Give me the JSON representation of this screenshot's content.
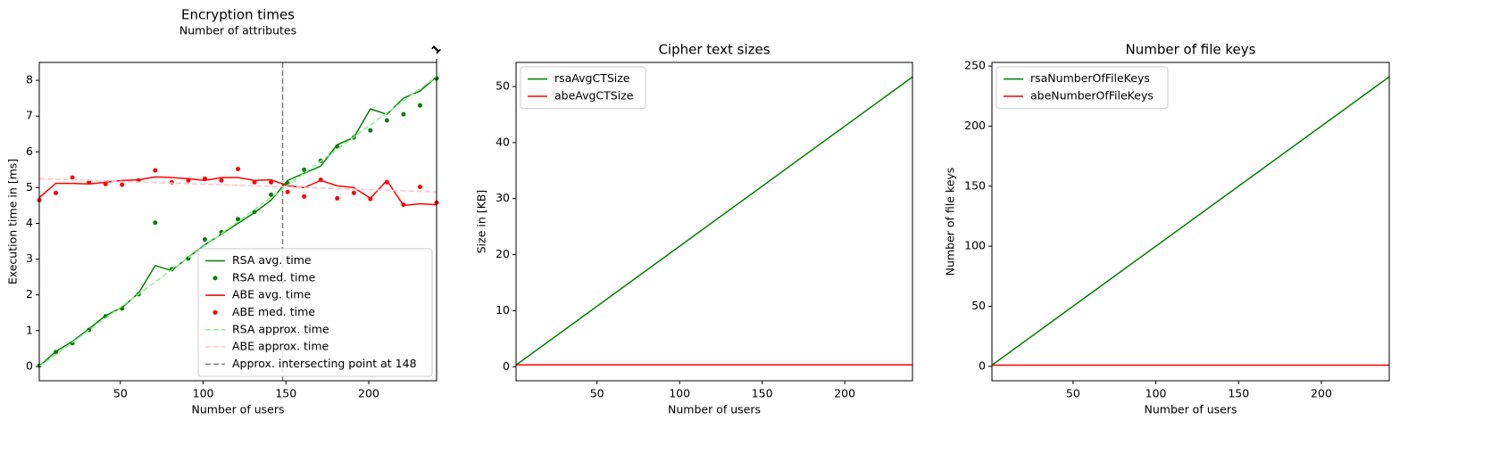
{
  "chart_data": [
    {
      "type": "line",
      "title": "Encryption times",
      "subtitle": "Number of attributes",
      "xlabel": "Number of users",
      "ylabel": "Execution time in [ms]",
      "xlim": [
        1,
        241
      ],
      "ylim": [
        -0.4,
        8.5
      ],
      "xticks": [
        50,
        100,
        150,
        200
      ],
      "yticks": [
        0,
        1,
        2,
        3,
        4,
        5,
        6,
        7,
        8
      ],
      "x2ticks": [
        {
          "value": 241,
          "label": "1"
        }
      ],
      "x": [
        1,
        11,
        21,
        31,
        41,
        51,
        61,
        71,
        81,
        91,
        101,
        111,
        121,
        131,
        141,
        151,
        161,
        171,
        181,
        191,
        201,
        211,
        221,
        231,
        241
      ],
      "legend": "lower right",
      "series": [
        {
          "name": "RSA avg. time",
          "color": "#008000",
          "style": "line",
          "values": [
            0.0,
            0.42,
            0.7,
            1.05,
            1.42,
            1.65,
            2.05,
            2.82,
            2.68,
            3.05,
            3.4,
            3.7,
            4.0,
            4.3,
            4.65,
            5.2,
            5.4,
            5.6,
            6.2,
            6.4,
            7.2,
            7.05,
            7.5,
            7.7,
            8.1
          ]
        },
        {
          "name": "RSA med. time",
          "color": "#008000",
          "style": "scatter",
          "values": [
            0.02,
            0.4,
            0.65,
            1.02,
            1.4,
            1.62,
            2.02,
            4.02,
            2.72,
            3.02,
            3.55,
            3.75,
            4.12,
            4.32,
            4.8,
            5.12,
            5.5,
            5.75,
            6.15,
            6.4,
            6.6,
            6.88,
            7.05,
            7.3,
            8.05
          ]
        },
        {
          "name": "ABE avg. time",
          "color": "#ff0000",
          "style": "line",
          "values": [
            4.72,
            5.12,
            5.12,
            5.1,
            5.15,
            5.2,
            5.22,
            5.3,
            5.28,
            5.25,
            5.2,
            5.28,
            5.28,
            5.2,
            5.22,
            5.05,
            5.0,
            5.2,
            5.05,
            5.0,
            4.7,
            5.2,
            4.5,
            4.55,
            4.52
          ]
        },
        {
          "name": "ABE med. time",
          "color": "#ff0000",
          "style": "scatter",
          "values": [
            4.65,
            4.85,
            5.28,
            5.15,
            5.1,
            5.08,
            5.2,
            5.48,
            5.15,
            5.2,
            5.25,
            5.2,
            5.52,
            5.15,
            5.15,
            4.88,
            4.75,
            5.22,
            4.7,
            4.85,
            4.68,
            5.15,
            4.52,
            5.02,
            4.58
          ]
        },
        {
          "name": "RSA approx. time",
          "color": "#90ee90",
          "style": "dashed",
          "x": [
            1,
            241
          ],
          "values": [
            0.0,
            8.1
          ]
        },
        {
          "name": "ABE approx. time",
          "color": "#ffc0cb",
          "style": "dashed",
          "x": [
            1,
            241
          ],
          "values": [
            5.25,
            4.88
          ]
        }
      ],
      "vline": {
        "x": 148,
        "label": "Approx. intersecting point at 148",
        "color": "#808080"
      }
    },
    {
      "type": "line",
      "title": "Cipher text sizes",
      "xlabel": "Number of users",
      "ylabel": "Size in [KB]",
      "xlim": [
        1,
        241
      ],
      "ylim": [
        -2.5,
        54.3
      ],
      "xticks": [
        50,
        100,
        150,
        200
      ],
      "yticks": [
        0,
        10,
        20,
        30,
        40,
        50
      ],
      "legend": "upper left",
      "series": [
        {
          "name": "rsaAvgCTSize",
          "color": "#008000",
          "style": "line",
          "x": [
            1,
            241
          ],
          "values": [
            0.3,
            51.7
          ]
        },
        {
          "name": "abeAvgCTSize",
          "color": "#ff0000",
          "style": "line",
          "x": [
            1,
            241
          ],
          "values": [
            0.35,
            0.35
          ]
        }
      ]
    },
    {
      "type": "line",
      "title": "Number of file keys",
      "xlabel": "Number of users",
      "ylabel": "Number of file keys",
      "xlim": [
        1,
        241
      ],
      "ylim": [
        -12,
        253
      ],
      "xticks": [
        50,
        100,
        150,
        200
      ],
      "yticks": [
        0,
        50,
        100,
        150,
        200,
        250
      ],
      "legend": "upper left",
      "series": [
        {
          "name": "rsaNumberOfFileKeys",
          "color": "#008000",
          "style": "line",
          "x": [
            1,
            241
          ],
          "values": [
            1,
            241
          ]
        },
        {
          "name": "abeNumberOfFileKeys",
          "color": "#ff0000",
          "style": "line",
          "x": [
            1,
            241
          ],
          "values": [
            1,
            1
          ]
        }
      ]
    }
  ]
}
